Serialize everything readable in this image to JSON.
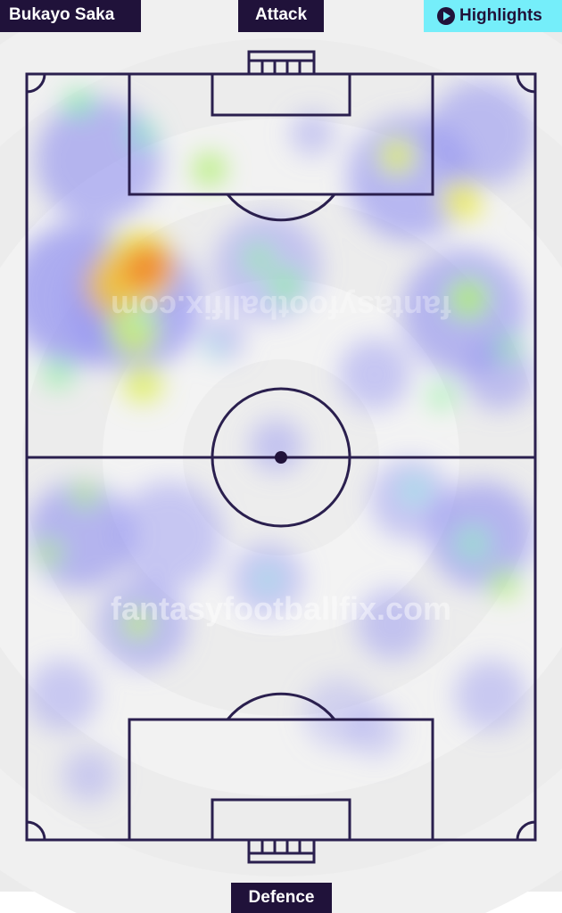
{
  "player_name": "Bukayo Saka",
  "direction_top": "Attack",
  "direction_bottom": "Defence",
  "highlights_button": {
    "label": "Highlights",
    "icon": "play-circle-icon"
  },
  "watermark": "fantasyfootballfix.com",
  "colors": {
    "line": "#2a1f4e",
    "tag_bg": "#20123a",
    "highlights_bg": "#75eefa",
    "pitch_bg": "#f2f2f2"
  }
}
